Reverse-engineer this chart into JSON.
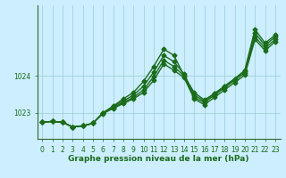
{
  "xlabel": "Graphe pression niveau de la mer (hPa)",
  "bg_color": "#cceeff",
  "line_color": "#1a6b1a",
  "grid_color": "#99cccc",
  "yticks": [
    1023,
    1024
  ],
  "ylim": [
    1022.3,
    1025.9
  ],
  "xlim": [
    -0.5,
    23.5
  ],
  "xticks": [
    0,
    1,
    2,
    3,
    4,
    5,
    6,
    7,
    8,
    9,
    10,
    11,
    12,
    13,
    14,
    15,
    16,
    17,
    18,
    19,
    20,
    21,
    22,
    23
  ],
  "series": [
    [
      1022.75,
      1022.77,
      1022.75,
      1022.62,
      1022.65,
      1022.72,
      1023.0,
      1023.18,
      1023.38,
      1023.55,
      1023.85,
      1024.25,
      1024.72,
      1024.55,
      1024.0,
      1023.55,
      1023.35,
      1023.52,
      1023.72,
      1023.92,
      1024.15,
      1025.25,
      1024.88,
      1025.1
    ],
    [
      1022.75,
      1022.77,
      1022.75,
      1022.62,
      1022.65,
      1022.72,
      1023.0,
      1023.18,
      1023.32,
      1023.48,
      1023.72,
      1024.1,
      1024.55,
      1024.38,
      1024.05,
      1023.48,
      1023.32,
      1023.52,
      1023.72,
      1023.92,
      1024.12,
      1025.15,
      1024.82,
      1025.05
    ],
    [
      1022.75,
      1022.77,
      1022.75,
      1022.62,
      1022.65,
      1022.72,
      1023.0,
      1023.15,
      1023.28,
      1023.42,
      1023.62,
      1023.98,
      1024.42,
      1024.25,
      1024.0,
      1023.42,
      1023.28,
      1023.48,
      1023.68,
      1023.88,
      1024.08,
      1025.05,
      1024.75,
      1024.98
    ],
    [
      1022.75,
      1022.77,
      1022.75,
      1022.62,
      1022.65,
      1022.72,
      1022.98,
      1023.12,
      1023.25,
      1023.38,
      1023.55,
      1023.88,
      1024.32,
      1024.15,
      1023.95,
      1023.38,
      1023.22,
      1023.42,
      1023.62,
      1023.82,
      1024.02,
      1024.98,
      1024.68,
      1024.92
    ]
  ],
  "marker": "D",
  "markersize": 2.5,
  "linewidth": 1.0,
  "tick_fontsize": 5.5,
  "label_fontsize": 6.5,
  "spine_color": "#336633"
}
